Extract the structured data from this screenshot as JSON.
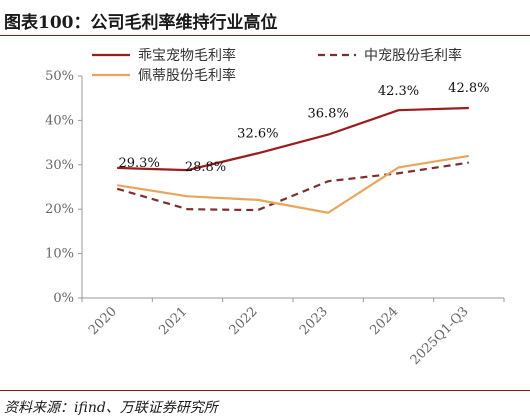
{
  "header": {
    "title": "图表100：公司毛利率维持行业高位"
  },
  "footer": {
    "source": "资料来源：ifind、万联证券研究所"
  },
  "chart_data": {
    "type": "line",
    "title": "",
    "xlabel": "",
    "ylabel": "",
    "categories": [
      "2020",
      "2021",
      "2022",
      "2023",
      "2024",
      "2025Q1-Q3"
    ],
    "ylim": [
      0,
      50
    ],
    "yticks": [
      0,
      10,
      20,
      30,
      40,
      50
    ],
    "ytick_labels": [
      "0%",
      "10%",
      "20%",
      "30%",
      "40%",
      "50%"
    ],
    "grid": false,
    "legend_position": "top",
    "series": [
      {
        "name": "乖宝宠物毛利率",
        "values": [
          29.3,
          28.8,
          32.6,
          36.8,
          42.3,
          42.8
        ],
        "labels": [
          "29.3%",
          "28.8%",
          "32.6%",
          "36.8%",
          "42.3%",
          "42.8%"
        ],
        "color": "#9b1c1c",
        "dash": "solid"
      },
      {
        "name": "中宠股份毛利率",
        "values": [
          24.6,
          20.0,
          19.8,
          26.3,
          28.1,
          30.5
        ],
        "color": "#7a2e2e",
        "dash": "dashed"
      },
      {
        "name": "佩蒂股份毛利率",
        "values": [
          25.4,
          22.9,
          22.1,
          19.2,
          29.4,
          32.0
        ],
        "color": "#e8a55c",
        "dash": "solid"
      }
    ]
  }
}
